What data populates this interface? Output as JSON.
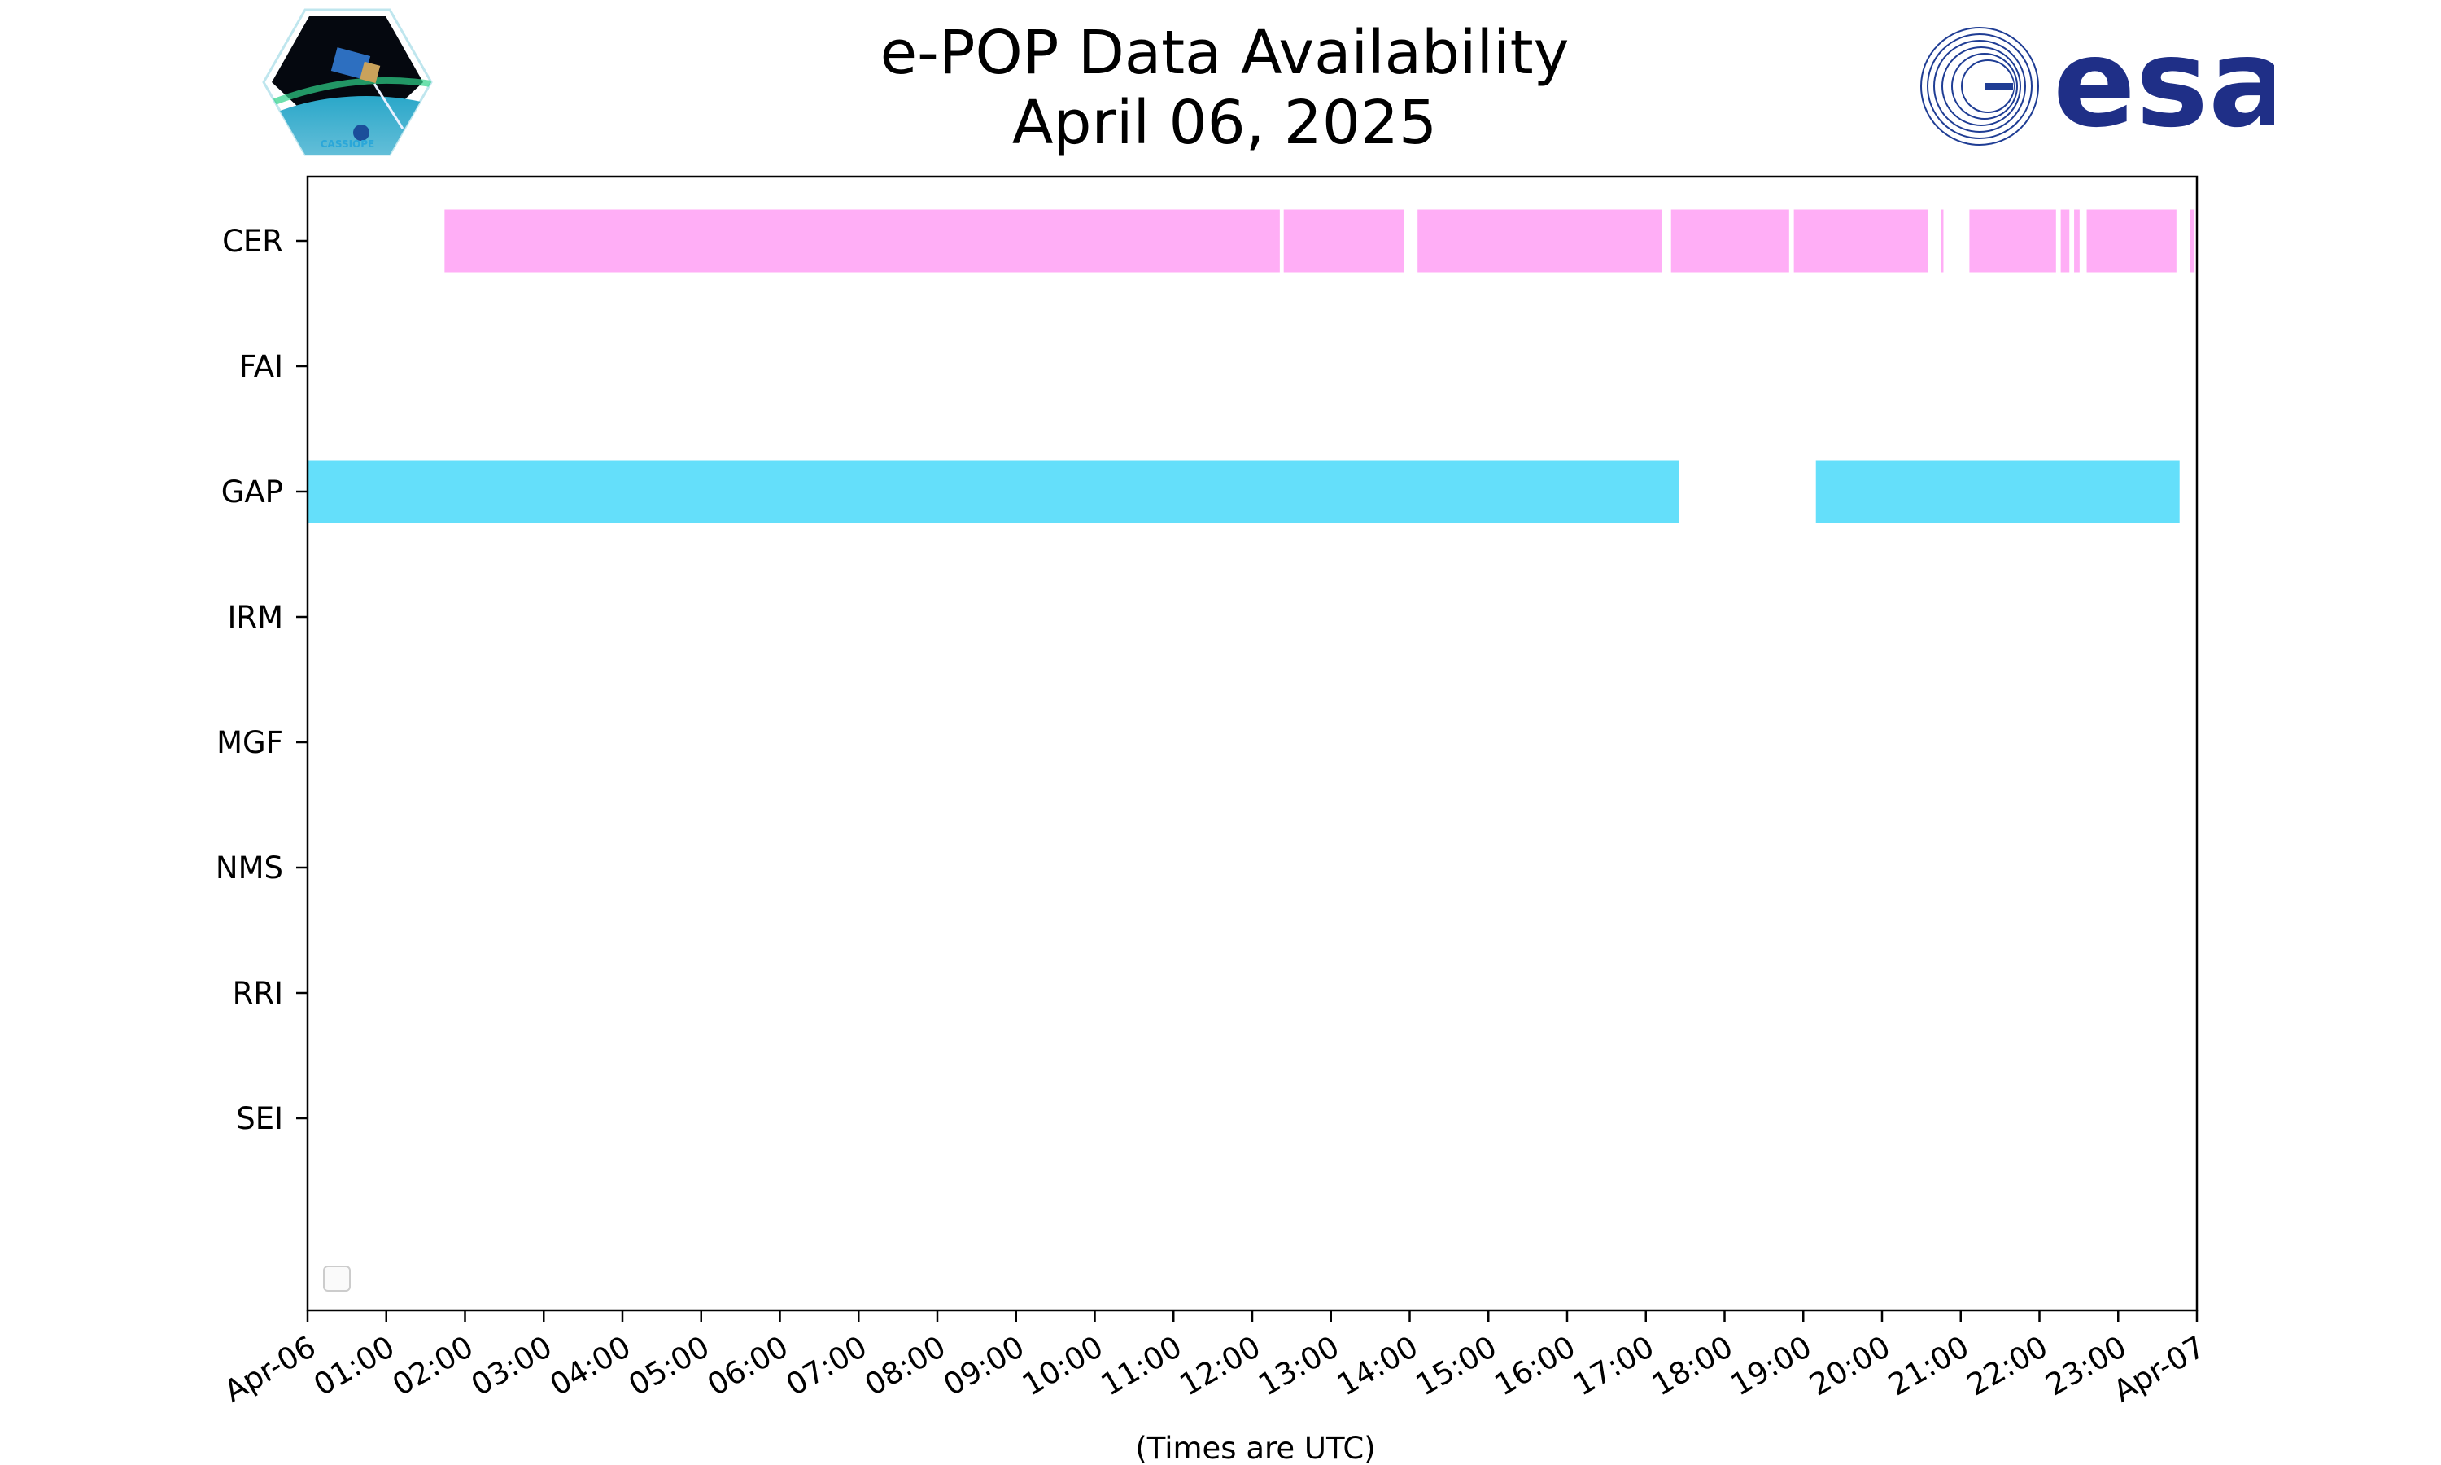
{
  "header": {
    "title_line1": "e-POP Data Availability",
    "title_line2": "April 06, 2025",
    "left_logo_text": "CASSIOPE",
    "right_logo_text": "esa"
  },
  "chart_data": {
    "type": "timeline",
    "title": "e-POP Data Availability April 06, 2025",
    "xlabel": "(Times are UTC)",
    "ylabel": "",
    "x_unit": "hours since 2025-04-06 00:00 UTC",
    "xlim": [
      0,
      24
    ],
    "x_tick_labels": [
      "Apr-06",
      "01:00",
      "02:00",
      "03:00",
      "04:00",
      "05:00",
      "06:00",
      "07:00",
      "08:00",
      "09:00",
      "10:00",
      "11:00",
      "12:00",
      "13:00",
      "14:00",
      "15:00",
      "16:00",
      "17:00",
      "18:00",
      "19:00",
      "20:00",
      "21:00",
      "22:00",
      "23:00",
      "Apr-07"
    ],
    "categories": [
      "CER",
      "FAI",
      "GAP",
      "IRM",
      "MGF",
      "NMS",
      "RRI",
      "SEI"
    ],
    "legend": "lower-left (empty)",
    "grid": false,
    "series": [
      {
        "name": "CER",
        "color": "#FFAEF6",
        "intervals": [
          [
            1.74,
            12.35
          ],
          [
            12.4,
            13.93
          ],
          [
            14.1,
            17.2
          ],
          [
            17.32,
            18.82
          ],
          [
            18.88,
            20.58
          ],
          [
            20.75,
            20.78
          ],
          [
            21.11,
            22.21
          ],
          [
            22.27,
            22.38
          ],
          [
            22.44,
            22.51
          ],
          [
            22.6,
            23.74
          ],
          [
            23.91,
            23.97
          ]
        ]
      },
      {
        "name": "FAI",
        "color": "#000000",
        "intervals": []
      },
      {
        "name": "GAP",
        "color": "#64DFFA",
        "intervals": [
          [
            0.0,
            17.42
          ],
          [
            19.16,
            23.78
          ]
        ]
      },
      {
        "name": "IRM",
        "color": "#000000",
        "intervals": []
      },
      {
        "name": "MGF",
        "color": "#000000",
        "intervals": []
      },
      {
        "name": "NMS",
        "color": "#000000",
        "intervals": []
      },
      {
        "name": "RRI",
        "color": "#000000",
        "intervals": []
      },
      {
        "name": "SEI",
        "color": "#000000",
        "intervals": []
      }
    ]
  }
}
